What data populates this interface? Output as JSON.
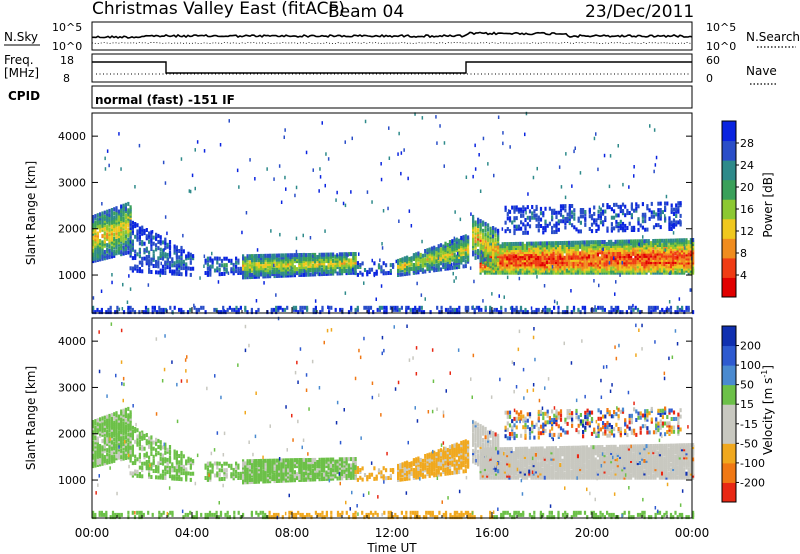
{
  "header": {
    "station": "Christmas Valley East (fitACF)",
    "beam": "Beam 04",
    "date": "23/Dec/2011"
  },
  "strips": {
    "nsky_label": "N.Sky",
    "nsky_ticks": [
      "10^5",
      "10^0"
    ],
    "nsearch_label": "N.Search",
    "nsearch_ticks": [
      "10^5",
      "10^0"
    ],
    "freq_label_1": "Freq.",
    "freq_label_2": "[MHz]",
    "freq_ticks": [
      "18",
      "8"
    ],
    "nave_label": "Nave",
    "nave_ticks": [
      "60",
      "0"
    ],
    "cpid_label": "CPID",
    "cpid_value": "normal (fast) -151 IF"
  },
  "chart_data": [
    {
      "type": "heatmap",
      "name": "power",
      "ylabel": "Slant Range [km]",
      "y_ticks": [
        "4000",
        "3000",
        "2000",
        "1000"
      ],
      "ylim": [
        180,
        4500
      ],
      "x_ticks": [
        "00:00",
        "04:00",
        "08:00",
        "12:00",
        "16:00",
        "20:00",
        "00:00"
      ],
      "colorbar_label": "Power [dB]",
      "colorbar_ticks": [
        "28",
        "24",
        "20",
        "16",
        "12",
        "8",
        "4"
      ],
      "colorbar_colors": [
        "#0a24e0",
        "#2a4ec8",
        "#2e8a8a",
        "#3aa05a",
        "#8cc832",
        "#f0c81e",
        "#f08c1e",
        "#f03c14",
        "#e10000"
      ],
      "color_range": [
        0,
        30
      ]
    },
    {
      "type": "heatmap",
      "name": "velocity",
      "ylabel": "Slant Range [km]",
      "y_ticks": [
        "4000",
        "3000",
        "2000",
        "1000"
      ],
      "ylim": [
        180,
        4500
      ],
      "x_ticks": [
        "00:00",
        "04:00",
        "08:00",
        "12:00",
        "16:00",
        "20:00",
        "00:00"
      ],
      "xlabel": "Time UT",
      "colorbar_label": "Velocity [m s",
      "colorbar_label_sup": "-1",
      "colorbar_label_end": "]",
      "colorbar_ticks": [
        "200",
        "100",
        "50",
        "15",
        "-15",
        "-50",
        "-100",
        "-200"
      ],
      "colorbar_colors": [
        "#1030b0",
        "#2e5ad0",
        "#4a8ad0",
        "#6cc048",
        "#c8c8c0",
        "#c8c8c0",
        "#f0a81e",
        "#f07814",
        "#e82814"
      ]
    }
  ]
}
